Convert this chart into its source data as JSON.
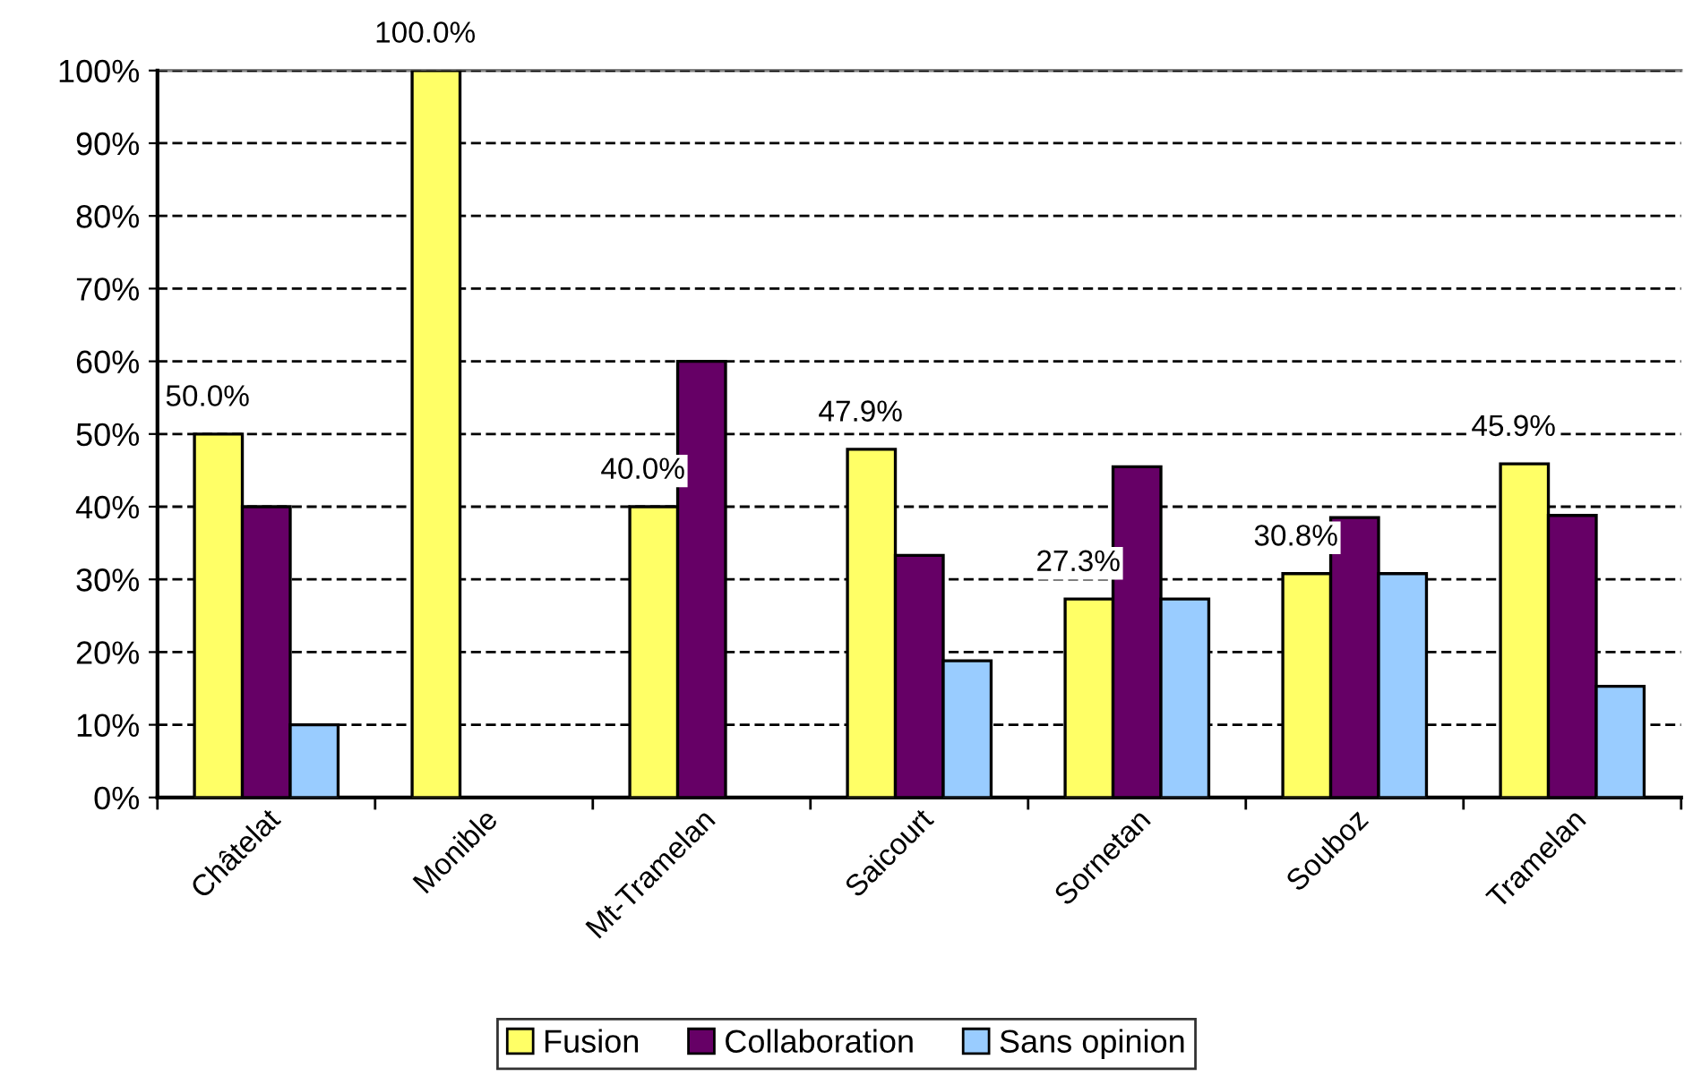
{
  "chart_data": {
    "type": "bar",
    "categories": [
      "Châtelat",
      "Monible",
      "Mt-Tramelan",
      "Saicourt",
      "Sornetan",
      "Souboz",
      "Tramelan"
    ],
    "series": [
      {
        "name": "Fusion",
        "color": "#ffff66",
        "values": [
          50.0,
          100.0,
          40.0,
          47.9,
          27.3,
          30.8,
          45.9
        ],
        "value_labels": [
          "50.0%",
          "100.0%",
          "40.0%",
          "47.9%",
          "27.3%",
          "30.8%",
          "45.9%"
        ]
      },
      {
        "name": "Collaboration",
        "color": "#660066",
        "values": [
          40,
          null,
          60,
          33.3,
          45.5,
          38.5,
          38.8
        ]
      },
      {
        "name": "Sans opinion",
        "color": "#99ccff",
        "values": [
          10,
          null,
          null,
          18.8,
          27.3,
          30.8,
          15.3
        ]
      }
    ],
    "ylim": [
      0,
      100
    ],
    "yticks": [
      {
        "value": 0,
        "label": "0%"
      },
      {
        "value": 10,
        "label": "10%"
      },
      {
        "value": 20,
        "label": "20%"
      },
      {
        "value": 30,
        "label": "30%"
      },
      {
        "value": 40,
        "label": "40%"
      },
      {
        "value": 50,
        "label": "50%"
      },
      {
        "value": 60,
        "label": "60%"
      },
      {
        "value": 70,
        "label": "70%"
      },
      {
        "value": 80,
        "label": "80%"
      },
      {
        "value": 90,
        "label": "90%"
      },
      {
        "value": 100,
        "label": "100%"
      }
    ],
    "grid": "y",
    "legend": "bottom"
  }
}
